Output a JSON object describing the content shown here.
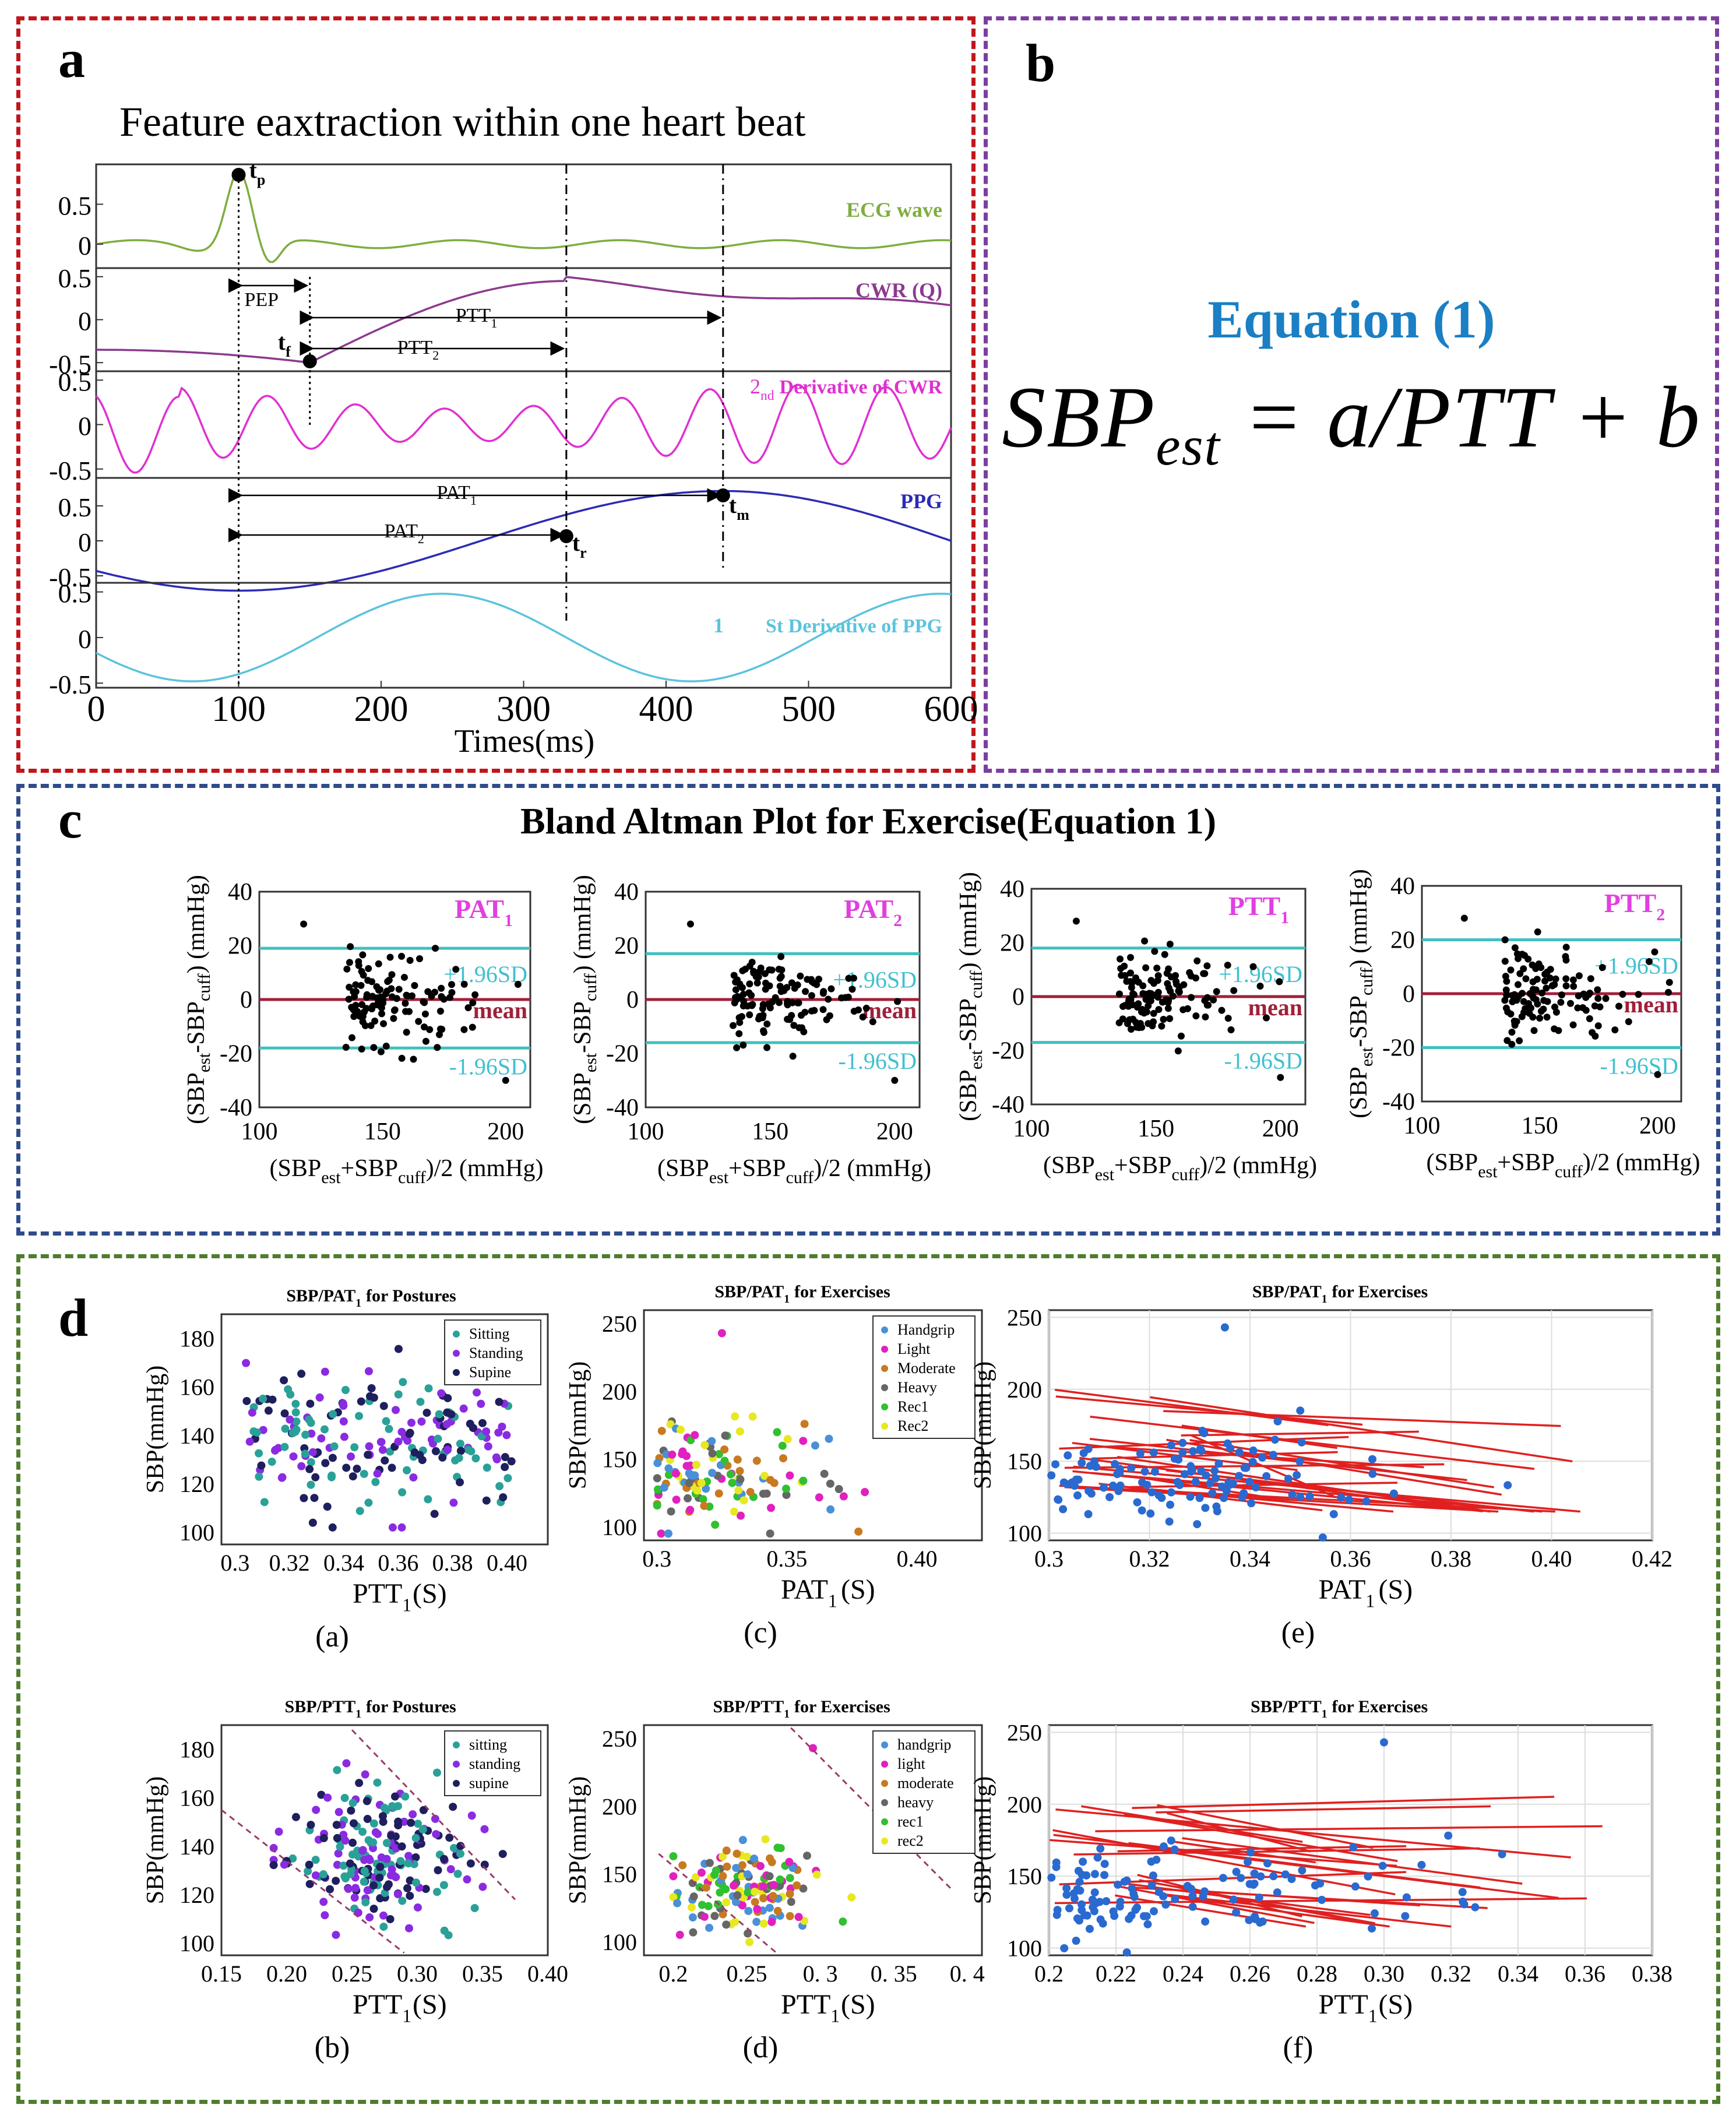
{
  "panel_labels": {
    "a": "a",
    "b": "b",
    "c": "c",
    "d": "d"
  },
  "panel_a": {
    "title": "Feature eaxtraction within one heart beat",
    "xlabel": "Times(ms)",
    "xticks": [
      "0",
      "100",
      "200",
      "300",
      "400",
      "500",
      "600"
    ],
    "xlim": [
      0,
      600
    ],
    "tracks": [
      {
        "name": "ECG wave",
        "color": "#7fad3f",
        "yticks": [
          "0.5",
          "0"
        ],
        "ylim": [
          -0.3,
          1.0
        ]
      },
      {
        "name": "CWR (Q)",
        "color": "#8b3a8f",
        "yticks": [
          "0.5",
          "0",
          "-0.5"
        ],
        "ylim": [
          -0.6,
          0.6
        ]
      },
      {
        "name": "2nd Derivative of CWR",
        "color": "#e030d0",
        "yticks": [
          "0.5",
          "0",
          "-0.5"
        ],
        "ylim": [
          -0.6,
          0.6
        ]
      },
      {
        "name": "PPG",
        "color": "#2b2bb5",
        "yticks": [
          "0.5",
          "0",
          "-0.5"
        ],
        "ylim": [
          -0.6,
          0.9
        ]
      },
      {
        "name": "1St Derivative of PPG",
        "color": "#5bc3dc",
        "yticks": [
          "0.5",
          "0",
          "-0.5"
        ],
        "ylim": [
          -0.55,
          0.6
        ]
      }
    ],
    "markers": {
      "tp": "t",
      "tp_sub": "p",
      "tf": "t",
      "tf_sub": "f",
      "tr": "t",
      "tr_sub": "r",
      "tm": "t",
      "tm_sub": "m"
    },
    "intervals": {
      "pep": "PEP",
      "ptt1": "PTT",
      "ptt1_sub": "1",
      "ptt2": "PTT",
      "ptt2_sub": "2",
      "pat1": "PAT",
      "pat1_sub": "1",
      "pat2": "PAT",
      "pat2_sub": "2"
    },
    "times_ms": {
      "tp": 100,
      "tf": 150,
      "tr": 330,
      "tm": 440
    }
  },
  "panel_b": {
    "title": "Equation (1)",
    "eq_main": "SBP",
    "eq_sub": "est",
    "eq_rest": " = a/PTT + b"
  },
  "panel_c": {
    "title": "Bland Altman Plot for Exercise(Equation 1)",
    "ylabel": "(SBPₑₛₜ-SBPcuff) (mmHg)",
    "xlabel": "(SBPest+SBPcuff)/2 (mmHg)",
    "xticks": [
      "100",
      "150",
      "200"
    ],
    "yticks": [
      "40",
      "20",
      "0",
      "-20",
      "-40"
    ],
    "plus_label": "+1.96SD",
    "minus_label": "-1.96SD",
    "mean_label": "mean",
    "plots": [
      {
        "tag": "PAT",
        "sub": "1",
        "upper": 19,
        "lower": -18,
        "mean": 0
      },
      {
        "tag": "PAT",
        "sub": "2",
        "upper": 17,
        "lower": -16,
        "mean": 0
      },
      {
        "tag": "PTT",
        "sub": "1",
        "upper": 18,
        "lower": -17,
        "mean": 0
      },
      {
        "tag": "PTT",
        "sub": "2",
        "upper": 20,
        "lower": -20,
        "mean": 0
      }
    ]
  },
  "panel_d": {
    "plots": [
      {
        "id": "a",
        "caption": "(a)",
        "title": "SBP/PAT",
        "title_sub": "1",
        "title_rest": " for Postures",
        "xlabel": "PTT",
        "xlabel_sub": "1",
        "xlabel_rest": "(S)",
        "ylabel": "SBP(mmHg)",
        "xticks": [
          "0.3",
          "0.32",
          "0.34",
          "0.36",
          "0.38",
          "0.40"
        ],
        "xlim": [
          0.295,
          0.415
        ],
        "yticks": [
          "180",
          "160",
          "140",
          "120",
          "100"
        ],
        "ylim": [
          95,
          190
        ],
        "legend": [
          "Sitting",
          "Standing",
          "Supine"
        ],
        "kind": "posture"
      },
      {
        "id": "c",
        "caption": "(c)",
        "title": "SBP/PAT",
        "title_sub": "1",
        "title_rest": " for Exercises",
        "xlabel": "PAT",
        "xlabel_sub": "1",
        "xlabel_rest": "(S)",
        "ylabel": "SBP(mmHg)",
        "xticks": [
          "0.3",
          "0.35",
          "0.40"
        ],
        "xlim": [
          0.295,
          0.425
        ],
        "yticks": [
          "250",
          "200",
          "150",
          "100"
        ],
        "ylim": [
          90,
          260
        ],
        "legend": [
          "Handgrip",
          "Light",
          "Moderate",
          "Heavy",
          "Rec1",
          "Rec2"
        ],
        "kind": "exercise"
      },
      {
        "id": "e",
        "caption": "(e)",
        "title": "SBP/PAT",
        "title_sub": "1",
        "title_rest": " for Exercises",
        "xlabel": "PAT",
        "xlabel_sub": "1",
        "xlabel_rest": "(S)",
        "ylabel": "SBP(mmHg)",
        "xticks": [
          "0.3",
          "0.32",
          "0.34",
          "0.36",
          "0.38",
          "0.40",
          "0.42"
        ],
        "xlim": [
          0.3,
          0.42
        ],
        "yticks": [
          "250",
          "200",
          "150",
          "100"
        ],
        "ylim": [
          95,
          255
        ],
        "legend": [],
        "kind": "lines"
      },
      {
        "id": "b",
        "caption": "(b)",
        "title": "SBP/PTT",
        "title_sub": "1",
        "title_rest": " for Postures",
        "xlabel": "PTT",
        "xlabel_sub": "1",
        "xlabel_rest": "(S)",
        "ylabel": "SBP(mmHg)",
        "xticks": [
          "0.15",
          "0.20",
          "0.25",
          "0.30",
          "0.35",
          "0.40"
        ],
        "xlim": [
          0.15,
          0.4
        ],
        "yticks": [
          "180",
          "160",
          "140",
          "120",
          "100"
        ],
        "ylim": [
          95,
          190
        ],
        "legend": [
          "sitting",
          "standing",
          "supine"
        ],
        "kind": "posture2"
      },
      {
        "id": "d",
        "caption": "(d)",
        "title": "SBP/PTT",
        "title_sub": "1",
        "title_rest": " for Exercises",
        "xlabel": "PTT",
        "xlabel_sub": "1",
        "xlabel_rest": "(S)",
        "ylabel": "SBP(mmHg)",
        "xticks": [
          "0.2",
          "0.25",
          "0. 3",
          "0. 35",
          "0. 4"
        ],
        "xlim": [
          0.18,
          0.41
        ],
        "yticks": [
          "250",
          "200",
          "150",
          "100"
        ],
        "ylim": [
          90,
          260
        ],
        "legend": [
          "handgrip",
          "light",
          "moderate",
          "heavy",
          "rec1",
          "rec2"
        ],
        "kind": "exercise2"
      },
      {
        "id": "f",
        "caption": "(f)",
        "title": "SBP/PTT",
        "title_sub": "1",
        "title_rest": " for Exercises",
        "xlabel": "PTT",
        "xlabel_sub": "1",
        "xlabel_rest": "(S)",
        "ylabel": "SBP(mmHg)",
        "xticks": [
          "0.2",
          "0.22",
          "0.24",
          "0.26",
          "0.28",
          "0.30",
          "0.32",
          "0.34",
          "0.36",
          "0.38"
        ],
        "xlim": [
          0.2,
          0.38
        ],
        "yticks": [
          "250",
          "200",
          "150",
          "100"
        ],
        "ylim": [
          95,
          255
        ],
        "legend": [],
        "kind": "lines2"
      }
    ],
    "posture_colors": [
      "#2aa198",
      "#8a2be2",
      "#1f1f5e"
    ],
    "exercise_colors": [
      "#4a90d9",
      "#e020c0",
      "#c87a20",
      "#666666",
      "#30c030",
      "#e8e820"
    ]
  },
  "chart_data": [
    {
      "type": "line",
      "title": "Feature eaxtraction within one heart beat",
      "xlabel": "Times(ms)",
      "xlim": [
        0,
        600
      ],
      "series": [
        {
          "name": "ECG wave"
        },
        {
          "name": "CWR (Q)"
        },
        {
          "name": "2nd Derivative of CWR"
        },
        {
          "name": "PPG"
        },
        {
          "name": "1St Derivative of PPG"
        }
      ]
    },
    {
      "type": "scatter",
      "title": "Bland Altman Plot for Exercise(Equation 1)",
      "xlim": [
        100,
        210
      ],
      "ylim": [
        -40,
        40
      ],
      "limits_of_agreement": "+1.96SD / mean / -1.96SD"
    },
    {
      "type": "scatter",
      "title": "SBP/PAT1 and SBP/PTT1 for Postures and Exercises",
      "ylabel": "SBP(mmHg)"
    }
  ]
}
